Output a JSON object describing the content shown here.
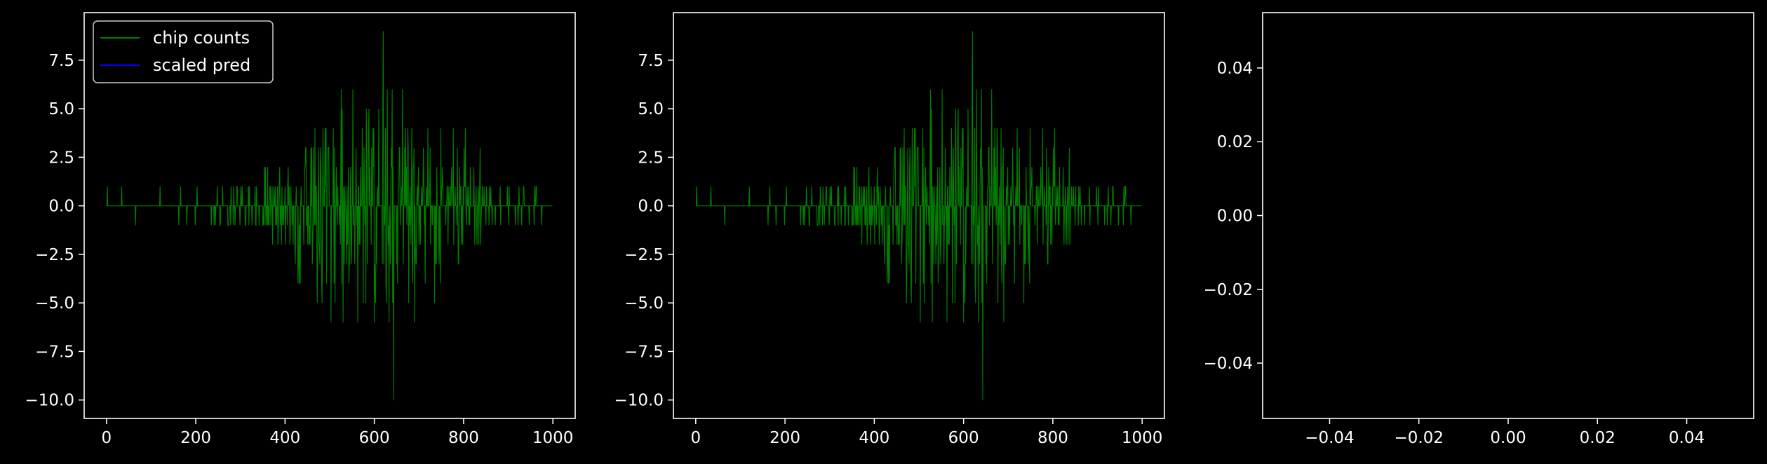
{
  "chart_data": [
    {
      "type": "line",
      "x_range": [
        0,
        999
      ],
      "xlim": [
        -50,
        1050
      ],
      "ylim": [
        -10.95,
        9.95
      ],
      "x_ticks": [
        0,
        200,
        400,
        600,
        800,
        1000
      ],
      "y_ticks": [
        -10.0,
        -7.5,
        -5.0,
        -2.5,
        0.0,
        2.5,
        5.0,
        7.5
      ],
      "x_tick_labels": [
        "0",
        "200",
        "400",
        "600",
        "800",
        "1000"
      ],
      "y_tick_labels": [
        "−10.0",
        "−7.5",
        "−5.0",
        "−2.5",
        "0.0",
        "2.5",
        "5.0",
        "7.5"
      ],
      "series": [
        {
          "name": "chip counts",
          "color": "#008000",
          "note_extrema": {
            "max": 9,
            "min": -10
          }
        },
        {
          "name": "scaled pred",
          "color": "#0000ff",
          "values": []
        }
      ],
      "legend": {
        "placement": "top-left",
        "entries": [
          "chip counts",
          "scaled pred"
        ]
      }
    },
    {
      "type": "line",
      "x_range": [
        0,
        999
      ],
      "xlim": [
        -50,
        1050
      ],
      "ylim": [
        -10.95,
        9.95
      ],
      "x_ticks": [
        0,
        200,
        400,
        600,
        800,
        1000
      ],
      "y_ticks": [
        -10.0,
        -7.5,
        -5.0,
        -2.5,
        0.0,
        2.5,
        5.0,
        7.5
      ],
      "x_tick_labels": [
        "0",
        "200",
        "400",
        "600",
        "800",
        "1000"
      ],
      "y_tick_labels": [
        "−10.0",
        "−7.5",
        "−5.0",
        "−2.5",
        "0.0",
        "2.5",
        "5.0",
        "7.5"
      ],
      "series": [
        {
          "color": "#008000",
          "note_extrema": {
            "max": 9,
            "min": -10
          }
        }
      ]
    },
    {
      "type": "line",
      "xlim": [
        -0.055,
        0.055
      ],
      "ylim": [
        -0.055,
        0.055
      ],
      "x_ticks": [
        -0.04,
        -0.02,
        0.0,
        0.02,
        0.04
      ],
      "y_ticks": [
        -0.04,
        -0.02,
        0.0,
        0.02,
        0.04
      ],
      "x_tick_labels": [
        "−0.04",
        "−0.02",
        "0.00",
        "0.02",
        "0.04"
      ],
      "y_tick_labels": [
        "−0.04",
        "−0.02",
        "0.00",
        "0.02",
        "0.04"
      ],
      "series": []
    }
  ],
  "colors": {
    "background": "#000000",
    "axes": "#ffffff",
    "counts": "#008000",
    "pred": "#0000ff"
  }
}
